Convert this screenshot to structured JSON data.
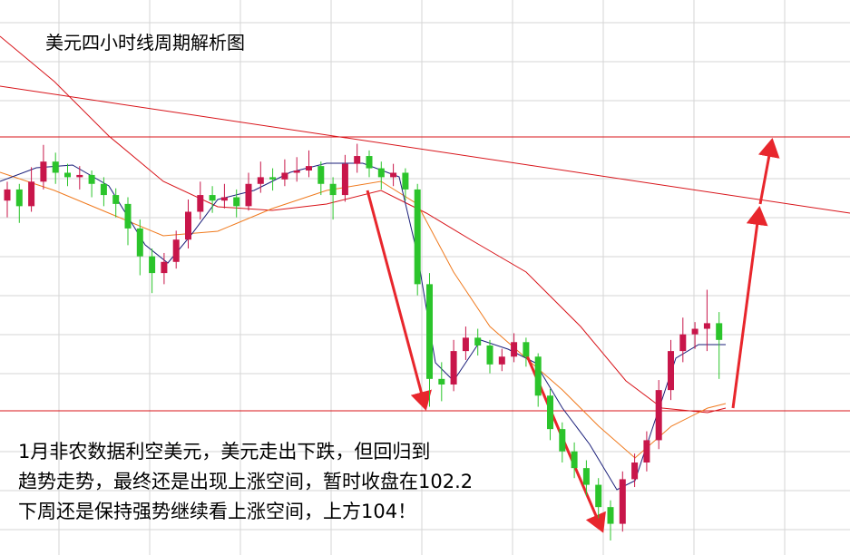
{
  "chart_data": {
    "type": "candlestick",
    "title": "美元四小时线周期解析图",
    "annotation": [
      "1月非农数据利空美元，美元走出下跌，但回归到",
      "趋势走势，最终还是出现上涨空间，暂时收盘在102.2",
      "下周还是保持强势继续看上涨空间，上方104！"
    ],
    "ylim": [
      100.27,
      105.25
    ],
    "up_color": "#c8164a",
    "down_color": "#2bc42b",
    "values": [
      [
        103.45,
        103.62,
        103.3,
        103.55
      ],
      [
        103.55,
        103.6,
        103.25,
        103.4
      ],
      [
        103.4,
        103.75,
        103.35,
        103.62
      ],
      [
        103.62,
        103.95,
        103.55,
        103.8
      ],
      [
        103.8,
        103.88,
        103.6,
        103.7
      ],
      [
        103.7,
        103.78,
        103.58,
        103.66
      ],
      [
        103.66,
        103.76,
        103.55,
        103.68
      ],
      [
        103.68,
        103.72,
        103.48,
        103.6
      ],
      [
        103.6,
        103.66,
        103.4,
        103.5
      ],
      [
        103.5,
        103.56,
        103.3,
        103.42
      ],
      [
        103.42,
        103.48,
        103.05,
        103.2
      ],
      [
        103.2,
        103.28,
        102.78,
        102.95
      ],
      [
        102.95,
        103.02,
        102.62,
        102.8
      ],
      [
        102.8,
        102.98,
        102.7,
        102.9
      ],
      [
        102.9,
        103.18,
        102.84,
        103.1
      ],
      [
        103.1,
        103.46,
        103.02,
        103.35
      ],
      [
        103.35,
        103.62,
        103.28,
        103.5
      ],
      [
        103.5,
        103.58,
        103.34,
        103.45
      ],
      [
        103.45,
        103.6,
        103.38,
        103.48
      ],
      [
        103.48,
        103.55,
        103.3,
        103.4
      ],
      [
        103.4,
        103.7,
        103.36,
        103.6
      ],
      [
        103.6,
        103.8,
        103.52,
        103.66
      ],
      [
        103.66,
        103.74,
        103.54,
        103.64
      ],
      [
        103.64,
        103.82,
        103.58,
        103.7
      ],
      [
        103.7,
        103.84,
        103.62,
        103.72
      ],
      [
        103.72,
        103.9,
        103.66,
        103.76
      ],
      [
        103.76,
        103.8,
        103.5,
        103.6
      ],
      [
        103.6,
        103.66,
        103.28,
        103.5
      ],
      [
        103.5,
        103.86,
        103.44,
        103.78
      ],
      [
        103.78,
        103.96,
        103.7,
        103.85
      ],
      [
        103.85,
        103.9,
        103.66,
        103.74
      ],
      [
        103.74,
        103.8,
        103.55,
        103.66
      ],
      [
        103.66,
        103.78,
        103.58,
        103.7
      ],
      [
        103.7,
        103.74,
        103.45,
        103.55
      ],
      [
        103.55,
        103.6,
        102.6,
        102.7
      ],
      [
        102.7,
        102.8,
        101.6,
        101.85
      ],
      [
        101.85,
        102.0,
        101.65,
        101.8
      ],
      [
        101.8,
        102.2,
        101.74,
        102.1
      ],
      [
        102.1,
        102.32,
        102.02,
        102.22
      ],
      [
        102.22,
        102.3,
        102.06,
        102.15
      ],
      [
        102.15,
        102.2,
        101.9,
        101.98
      ],
      [
        101.98,
        102.12,
        101.92,
        102.05
      ],
      [
        102.05,
        102.26,
        102.0,
        102.18
      ],
      [
        102.18,
        102.22,
        101.96,
        102.05
      ],
      [
        102.05,
        102.08,
        101.6,
        101.7
      ],
      [
        101.7,
        101.76,
        101.3,
        101.4
      ],
      [
        101.4,
        101.46,
        101.1,
        101.2
      ],
      [
        101.2,
        101.28,
        100.96,
        101.05
      ],
      [
        101.05,
        101.12,
        100.8,
        100.9
      ],
      [
        100.9,
        100.96,
        100.6,
        100.7
      ],
      [
        100.7,
        100.76,
        100.4,
        100.55
      ],
      [
        100.55,
        101.02,
        100.48,
        100.95
      ],
      [
        100.95,
        101.18,
        100.88,
        101.1
      ],
      [
        101.1,
        101.38,
        101.02,
        101.3
      ],
      [
        101.3,
        101.84,
        101.22,
        101.75
      ],
      [
        101.75,
        102.2,
        101.66,
        102.1
      ],
      [
        102.1,
        102.4,
        102.0,
        102.25
      ],
      [
        102.25,
        102.36,
        102.12,
        102.3
      ],
      [
        102.3,
        102.65,
        102.1,
        102.35
      ],
      [
        102.35,
        102.45,
        101.85,
        102.2
      ]
    ]
  }
}
